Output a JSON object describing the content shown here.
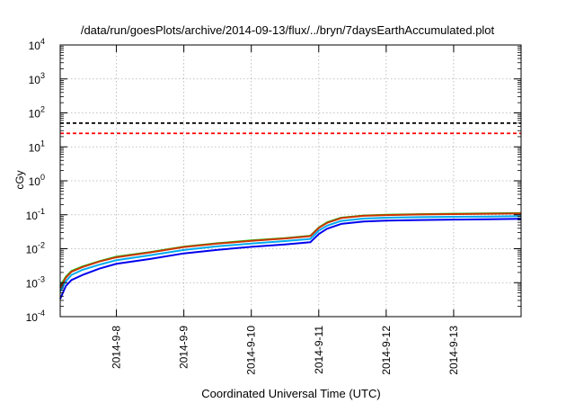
{
  "chart_data": {
    "type": "line",
    "title": "/data/run/goesPlots/archive/2014-09-13/flux/../bryn/7daysEarthAccumulated.plot",
    "xlabel": "Coordinated Universal Time (UTC)",
    "ylabel": "cGy",
    "y_scale": "log",
    "ylim": [
      0.0001,
      10000
    ],
    "xlim": [
      "2014-09-07 04:00",
      "2014-09-14 00:00"
    ],
    "grid": true,
    "legend": "none",
    "y_ticks": [
      {
        "base": "10",
        "exp": "-4",
        "value": 0.0001
      },
      {
        "base": "10",
        "exp": "-3",
        "value": 0.001
      },
      {
        "base": "10",
        "exp": "-2",
        "value": 0.01
      },
      {
        "base": "10",
        "exp": "-1",
        "value": 0.1
      },
      {
        "base": "10",
        "exp": "0",
        "value": 1
      },
      {
        "base": "10",
        "exp": "1",
        "value": 10
      },
      {
        "base": "10",
        "exp": "2",
        "value": 100
      },
      {
        "base": "10",
        "exp": "3",
        "value": 1000
      },
      {
        "base": "10",
        "exp": "4",
        "value": 10000
      }
    ],
    "x_ticks": [
      {
        "label": "2014-9-8",
        "value": "2014-09-08 00:00"
      },
      {
        "label": "2014-9-9",
        "value": "2014-09-09 00:00"
      },
      {
        "label": "2014-9-10",
        "value": "2014-09-10 00:00"
      },
      {
        "label": "2014-9-11",
        "value": "2014-09-11 00:00"
      },
      {
        "label": "2014-9-12",
        "value": "2014-09-12 00:00"
      },
      {
        "label": "2014-9-13",
        "value": "2014-09-13 00:00"
      }
    ],
    "thresholds": [
      {
        "value": 50,
        "color": "#000000",
        "style": "dashed"
      },
      {
        "value": 25,
        "color": "#ff0000",
        "style": "dashed"
      }
    ],
    "series": [
      {
        "color": "#00cc00",
        "points": [
          [
            "2014-09-07 04:00",
            0.0008
          ],
          [
            "2014-09-07 06:00",
            0.0015
          ],
          [
            "2014-09-07 08:00",
            0.0022
          ],
          [
            "2014-09-07 12:00",
            0.003
          ],
          [
            "2014-09-07 18:00",
            0.0043
          ],
          [
            "2014-09-08 00:00",
            0.0058
          ],
          [
            "2014-09-08 12:00",
            0.008
          ],
          [
            "2014-09-09 00:00",
            0.0115
          ],
          [
            "2014-09-09 12:00",
            0.0145
          ],
          [
            "2014-09-10 00:00",
            0.0175
          ],
          [
            "2014-09-10 12:00",
            0.0205
          ],
          [
            "2014-09-10 21:00",
            0.024
          ],
          [
            "2014-09-11 00:00",
            0.042
          ],
          [
            "2014-09-11 03:00",
            0.06
          ],
          [
            "2014-09-11 08:00",
            0.082
          ],
          [
            "2014-09-11 16:00",
            0.095
          ],
          [
            "2014-09-12 00:00",
            0.1
          ],
          [
            "2014-09-12 12:00",
            0.104
          ],
          [
            "2014-09-13 00:00",
            0.107
          ],
          [
            "2014-09-13 12:00",
            0.11
          ],
          [
            "2014-09-14 00:00",
            0.112
          ]
        ]
      },
      {
        "color": "#cc3300",
        "points": [
          [
            "2014-09-07 04:00",
            0.0007
          ],
          [
            "2014-09-07 06:00",
            0.0014
          ],
          [
            "2014-09-07 08:00",
            0.0021
          ],
          [
            "2014-09-07 12:00",
            0.0029
          ],
          [
            "2014-09-07 18:00",
            0.0042
          ],
          [
            "2014-09-08 00:00",
            0.0056
          ],
          [
            "2014-09-08 12:00",
            0.0078
          ],
          [
            "2014-09-09 00:00",
            0.0112
          ],
          [
            "2014-09-09 12:00",
            0.0142
          ],
          [
            "2014-09-10 00:00",
            0.0171
          ],
          [
            "2014-09-10 12:00",
            0.02
          ],
          [
            "2014-09-10 21:00",
            0.0235
          ],
          [
            "2014-09-11 00:00",
            0.041
          ],
          [
            "2014-09-11 03:00",
            0.058
          ],
          [
            "2014-09-11 08:00",
            0.08
          ],
          [
            "2014-09-11 16:00",
            0.093
          ],
          [
            "2014-09-12 00:00",
            0.098
          ],
          [
            "2014-09-12 12:00",
            0.102
          ],
          [
            "2014-09-13 00:00",
            0.105
          ],
          [
            "2014-09-13 12:00",
            0.107
          ],
          [
            "2014-09-14 00:00",
            0.109
          ]
        ]
      },
      {
        "color": "#00aaee",
        "points": [
          [
            "2014-09-07 04:00",
            0.00055
          ],
          [
            "2014-09-07 06:00",
            0.0011
          ],
          [
            "2014-09-07 08:00",
            0.0017
          ],
          [
            "2014-09-07 12:00",
            0.0024
          ],
          [
            "2014-09-07 18:00",
            0.0034
          ],
          [
            "2014-09-08 00:00",
            0.0046
          ],
          [
            "2014-09-08 12:00",
            0.0064
          ],
          [
            "2014-09-09 00:00",
            0.0092
          ],
          [
            "2014-09-09 12:00",
            0.0118
          ],
          [
            "2014-09-10 00:00",
            0.0142
          ],
          [
            "2014-09-10 12:00",
            0.0168
          ],
          [
            "2014-09-10 21:00",
            0.0195
          ],
          [
            "2014-09-11 00:00",
            0.034
          ],
          [
            "2014-09-11 03:00",
            0.048
          ],
          [
            "2014-09-11 08:00",
            0.066
          ],
          [
            "2014-09-11 16:00",
            0.077
          ],
          [
            "2014-09-12 00:00",
            0.082
          ],
          [
            "2014-09-12 12:00",
            0.085
          ],
          [
            "2014-09-13 00:00",
            0.087
          ],
          [
            "2014-09-13 12:00",
            0.089
          ],
          [
            "2014-09-14 00:00",
            0.091
          ]
        ]
      },
      {
        "color": "#0000ee",
        "points": [
          [
            "2014-09-07 04:00",
            0.00033
          ],
          [
            "2014-09-07 06:00",
            0.0008
          ],
          [
            "2014-09-07 08:00",
            0.0012
          ],
          [
            "2014-09-07 12:00",
            0.0017
          ],
          [
            "2014-09-07 18:00",
            0.0026
          ],
          [
            "2014-09-08 00:00",
            0.0036
          ],
          [
            "2014-09-08 12:00",
            0.005
          ],
          [
            "2014-09-09 00:00",
            0.0073
          ],
          [
            "2014-09-09 12:00",
            0.0093
          ],
          [
            "2014-09-10 00:00",
            0.0114
          ],
          [
            "2014-09-10 12:00",
            0.0133
          ],
          [
            "2014-09-10 21:00",
            0.0155
          ],
          [
            "2014-09-11 00:00",
            0.027
          ],
          [
            "2014-09-11 03:00",
            0.039
          ],
          [
            "2014-09-11 08:00",
            0.054
          ],
          [
            "2014-09-11 16:00",
            0.063
          ],
          [
            "2014-09-12 00:00",
            0.067
          ],
          [
            "2014-09-12 12:00",
            0.07
          ],
          [
            "2014-09-13 00:00",
            0.072
          ],
          [
            "2014-09-13 12:00",
            0.074
          ],
          [
            "2014-09-14 00:00",
            0.076
          ]
        ]
      }
    ]
  }
}
